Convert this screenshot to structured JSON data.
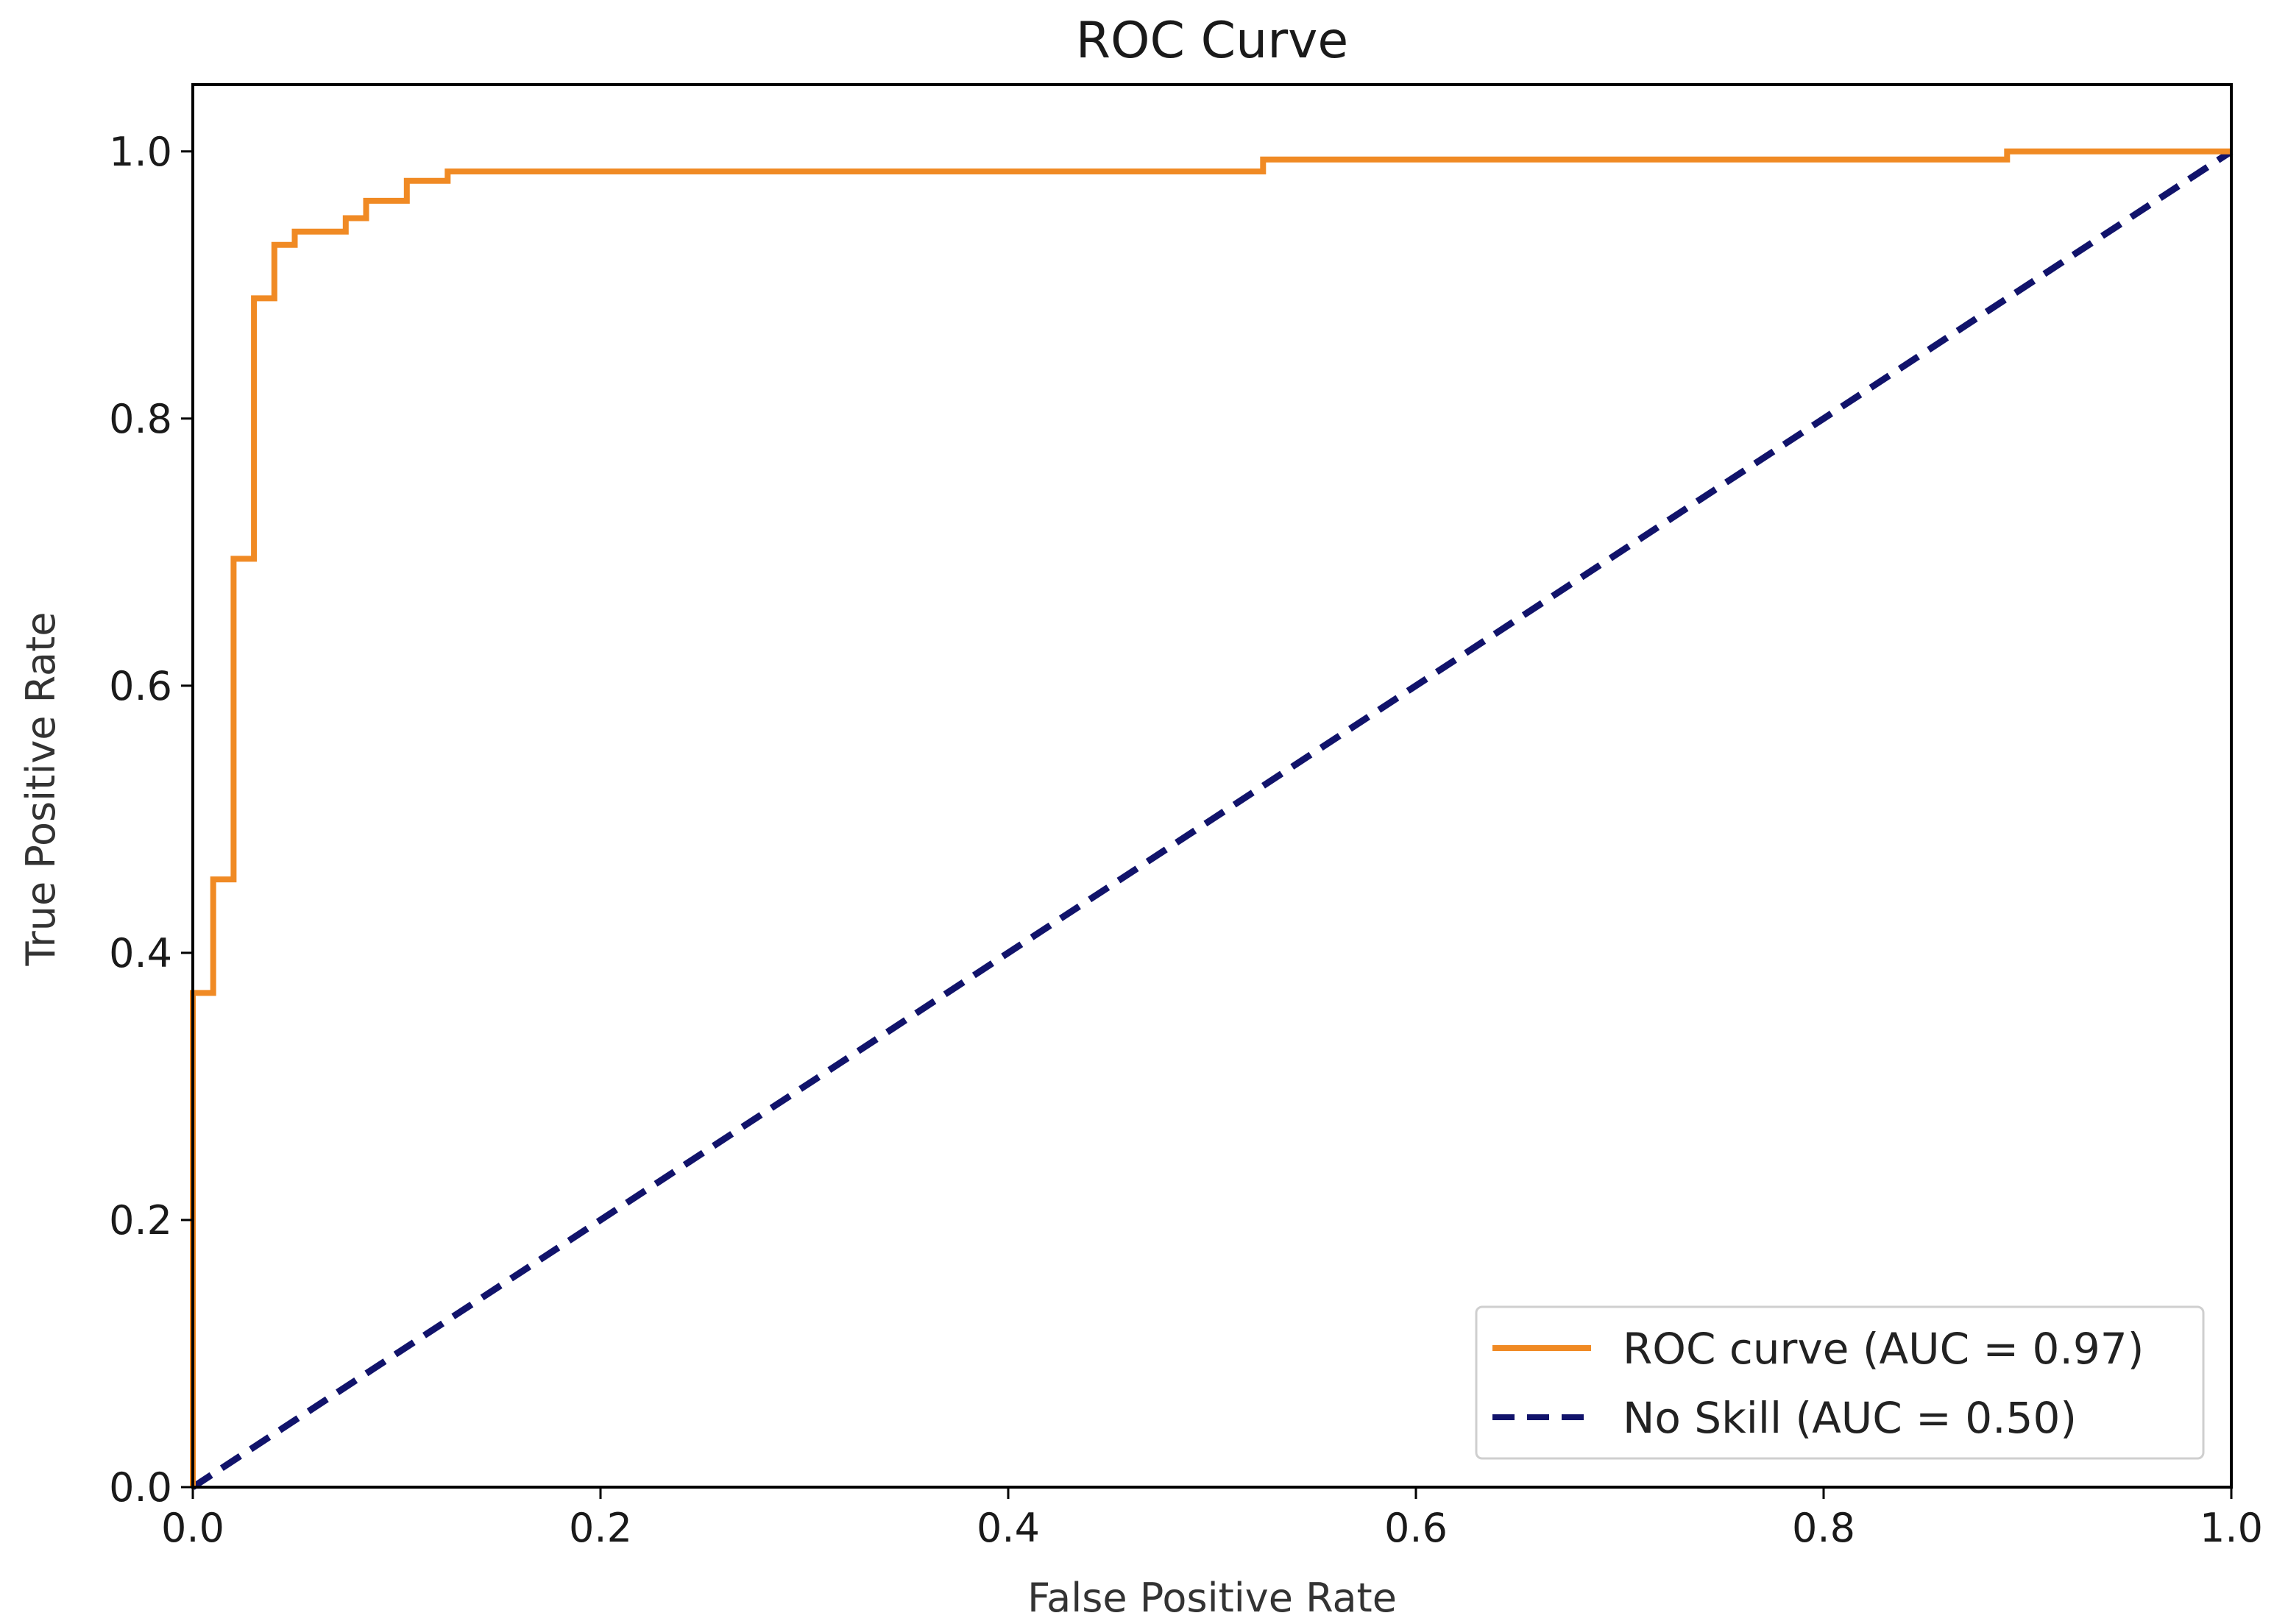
{
  "chart_data": {
    "type": "line",
    "title": "ROC Curve",
    "xlabel": "False Positive Rate",
    "ylabel": "True Positive Rate",
    "xlim": [
      0.0,
      1.0
    ],
    "ylim": [
      0.0,
      1.05
    ],
    "xticks": [
      "0.0",
      "0.2",
      "0.4",
      "0.6",
      "0.8",
      "1.0"
    ],
    "yticks": [
      "0.0",
      "0.2",
      "0.4",
      "0.6",
      "0.8",
      "1.0"
    ],
    "grid": false,
    "legend_position": "bottom-right",
    "series": [
      {
        "name": "ROC curve (AUC = 0.97)",
        "color": "#f08a24",
        "style": "solid",
        "x": [
          0.0,
          0.0,
          0.01,
          0.01,
          0.02,
          0.02,
          0.03,
          0.03,
          0.04,
          0.04,
          0.05,
          0.05,
          0.075,
          0.075,
          0.085,
          0.085,
          0.105,
          0.105,
          0.125,
          0.125,
          0.525,
          0.525,
          0.89,
          0.89,
          1.0
        ],
        "y": [
          0.0,
          0.37,
          0.37,
          0.455,
          0.455,
          0.695,
          0.695,
          0.89,
          0.89,
          0.93,
          0.93,
          0.94,
          0.94,
          0.95,
          0.95,
          0.963,
          0.963,
          0.978,
          0.978,
          0.985,
          0.985,
          0.994,
          0.994,
          1.0,
          1.0
        ]
      },
      {
        "name": "No Skill (AUC = 0.50)",
        "color": "#11136b",
        "style": "dashed",
        "x": [
          0.0,
          1.0
        ],
        "y": [
          0.0,
          1.0
        ]
      }
    ]
  }
}
